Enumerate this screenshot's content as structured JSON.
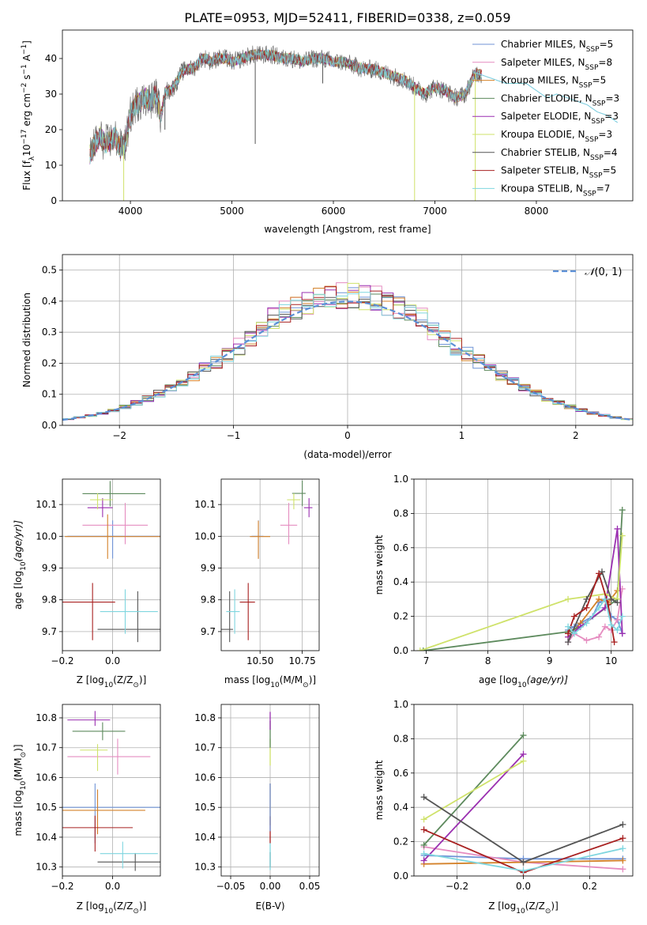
{
  "figure_title": "PLATE=0953, MJD=52411, FIBERID=0338, z=0.059",
  "legend": {
    "series": [
      "Chabrier MILES",
      "Salpeter MILES",
      "Kroupa MILES",
      "Chabrier ELODIE",
      "Salpeter ELODIE",
      "Kroupa ELODIE",
      "Chabrier STELIB",
      "Salpeter STELIB",
      "Kroupa STELIB"
    ],
    "nssp": [
      "5",
      "8",
      "5",
      "3",
      "3",
      "3",
      "4",
      "5",
      "7"
    ],
    "nssp_prefix": "N",
    "nssp_sub": "SSP",
    "nssp_eq": "=",
    "colors": [
      "#6f93d6",
      "#e58cc0",
      "#d4822a",
      "#5d8a5d",
      "#9a2fb0",
      "#cfe26a",
      "#555555",
      "#a82020",
      "#7fd6df"
    ]
  },
  "chart_data": [
    {
      "type": "line",
      "id": "spectrum",
      "xlabel": "wavelength [Angstrom, rest frame]",
      "ylabel_parts": [
        "Flux [f",
        "λ",
        "10",
        "−17",
        " erg cm",
        "−2",
        " s",
        "−1",
        " A",
        "−1",
        "]"
      ],
      "xlim": [
        3330,
        8950
      ],
      "ylim": [
        0,
        48
      ],
      "xticks": [
        4000,
        5000,
        6000,
        7000,
        8000
      ],
      "yticks": [
        0,
        10,
        20,
        30,
        40
      ],
      "continuum_x": [
        3600,
        3650,
        3700,
        3750,
        3800,
        3850,
        3900,
        3950,
        4000,
        4050,
        4100,
        4150,
        4200,
        4250,
        4300,
        4350,
        4400,
        4450,
        4500,
        4550,
        4600,
        4650,
        4700,
        4750,
        4800,
        4850,
        4900,
        4950,
        5000,
        5100,
        5200,
        5300,
        5400,
        5500,
        5600,
        5700,
        5800,
        5900,
        6000,
        6100,
        6200,
        6300,
        6400,
        6500,
        6600,
        6700,
        6800,
        6900,
        7000,
        7100,
        7200,
        7300,
        7400,
        7500,
        7600,
        7700,
        7800,
        7900,
        8000,
        8100,
        8200,
        8300,
        8400,
        8500,
        8600,
        8700,
        8800
      ],
      "continuum_y": [
        13,
        16,
        18,
        16,
        17,
        18,
        15,
        16,
        24,
        27,
        28,
        29,
        28,
        30,
        24,
        31,
        31,
        33,
        36,
        37,
        37,
        38,
        40,
        40,
        39,
        40,
        40,
        40,
        39,
        40,
        41,
        41,
        41,
        40,
        40,
        39,
        40,
        40,
        39,
        39,
        38,
        37,
        37,
        36,
        35,
        34,
        32,
        30,
        32,
        31,
        29,
        30,
        36,
        35,
        34,
        33,
        33,
        33,
        31,
        29,
        30,
        29,
        28,
        27,
        25,
        24,
        22
      ],
      "dips": [
        {
          "x": 3934,
          "y": 0
        },
        {
          "x": 6800,
          "y": 0
        },
        {
          "x": 7398,
          "y": 0
        },
        {
          "x": 5230,
          "y": 16
        },
        {
          "x": 5895,
          "y": 33
        },
        {
          "x": 4340,
          "y": 20
        }
      ]
    },
    {
      "type": "line",
      "id": "residuals",
      "xlabel": "(data-model)/error",
      "ylabel": "Normed distribution",
      "xlim": [
        -2.5,
        2.5
      ],
      "ylim": [
        0,
        0.55
      ],
      "xticks": [
        -2,
        -1,
        0,
        1,
        2
      ],
      "yticks": [
        0.0,
        0.1,
        0.2,
        0.3,
        0.4,
        0.5
      ],
      "ref_label": "N(0, 1)",
      "ref_label_parts": [
        "𝒩",
        "(0, 1)"
      ],
      "bin_width": 0.1,
      "grid": true
    },
    {
      "type": "scatter",
      "id": "age-vs-Z",
      "xlabel_parts": [
        "Z [log",
        "10",
        "(Z/Z",
        "⊙",
        ")]"
      ],
      "ylabel_parts": [
        "age  [log",
        "10",
        "(age/yr)]"
      ],
      "xlim": [
        -0.2,
        0.19
      ],
      "ylim": [
        9.64,
        10.18
      ],
      "xticks": [
        -0.2,
        0.0
      ],
      "yticks": [
        9.7,
        9.8,
        9.9,
        10.0,
        10.1
      ],
      "grid": true,
      "points": [
        {
          "s": 0,
          "x": 0.0,
          "y": 10.0,
          "xl": 0.18,
          "xh": 0.32,
          "yl": 0.07,
          "yh": 0.05
        },
        {
          "s": 1,
          "x": 0.05,
          "y": 10.035,
          "xl": 0.17,
          "xh": 0.09,
          "yl": 0.06,
          "yh": 0.07
        },
        {
          "s": 2,
          "x": -0.02,
          "y": 9.999,
          "xl": 0.17,
          "xh": 0.35,
          "yl": 0.07,
          "yh": 0.07
        },
        {
          "s": 3,
          "x": -0.01,
          "y": 10.134,
          "xl": 0.11,
          "xh": 0.14,
          "yl": 0.04,
          "yh": 0.04
        },
        {
          "s": 4,
          "x": -0.04,
          "y": 10.09,
          "xl": 0.06,
          "xh": 0.04,
          "yl": 0.03,
          "yh": 0.03
        },
        {
          "s": 5,
          "x": -0.06,
          "y": 10.115,
          "xl": 0.03,
          "xh": 0.06,
          "yl": 0.03,
          "yh": 0.02
        },
        {
          "s": 6,
          "x": 0.1,
          "y": 9.707,
          "xl": 0.16,
          "xh": 0.13,
          "yl": 0.04,
          "yh": 0.12
        },
        {
          "s": 7,
          "x": -0.08,
          "y": 9.793,
          "xl": 0.13,
          "xh": 0.09,
          "yl": 0.12,
          "yh": 0.06
        },
        {
          "s": 8,
          "x": 0.05,
          "y": 9.763,
          "xl": 0.1,
          "xh": 0.13,
          "yl": 0.07,
          "yh": 0.07
        }
      ]
    },
    {
      "type": "scatter",
      "id": "age-vs-mass",
      "xlabel_parts": [
        "mass [log",
        "10",
        "(M/M",
        "⊙",
        ")]"
      ],
      "xlim": [
        10.27,
        10.85
      ],
      "ylim": [
        9.64,
        10.18
      ],
      "xticks": [
        10.5,
        10.75
      ],
      "xtick_labels": [
        "10.50",
        "10.75"
      ],
      "yticks": [
        9.7,
        9.8,
        9.9,
        10.0,
        10.1
      ],
      "grid": true,
      "points": [
        {
          "s": 0,
          "x": 10.49,
          "y": 10.0,
          "xl": 0.04,
          "xh": 0.03,
          "yl": 0.07,
          "yh": 0.05
        },
        {
          "s": 1,
          "x": 10.67,
          "y": 10.035,
          "xl": 0.05,
          "xh": 0.05,
          "yl": 0.06,
          "yh": 0.07
        },
        {
          "s": 2,
          "x": 10.49,
          "y": 9.999,
          "xl": 0.05,
          "xh": 0.07,
          "yl": 0.07,
          "yh": 0.05
        },
        {
          "s": 3,
          "x": 10.75,
          "y": 10.135,
          "xl": 0.06,
          "xh": 0.02,
          "yl": 0.04,
          "yh": 0.04
        },
        {
          "s": 4,
          "x": 10.79,
          "y": 10.09,
          "xl": 0.03,
          "xh": 0.02,
          "yl": 0.03,
          "yh": 0.03
        },
        {
          "s": 5,
          "x": 10.7,
          "y": 10.115,
          "xl": 0.04,
          "xh": 0.04,
          "yl": 0.03,
          "yh": 0.02
        },
        {
          "s": 6,
          "x": 10.32,
          "y": 9.707,
          "xl": 0.05,
          "xh": 0.02,
          "yl": 0.04,
          "yh": 0.12
        },
        {
          "s": 7,
          "x": 10.43,
          "y": 9.793,
          "xl": 0.05,
          "xh": 0.04,
          "yl": 0.12,
          "yh": 0.06
        },
        {
          "s": 8,
          "x": 10.35,
          "y": 9.763,
          "xl": 0.05,
          "xh": 0.03,
          "yl": 0.07,
          "yh": 0.07
        }
      ]
    },
    {
      "type": "line",
      "id": "weight-vs-age",
      "xlabel_parts": [
        "age  [log",
        "10",
        "(age/yr)]"
      ],
      "ylabel": "mass weight",
      "xlim": [
        6.8,
        10.35
      ],
      "ylim": [
        0,
        1.0
      ],
      "xticks": [
        7,
        8,
        9,
        10
      ],
      "yticks": [
        0.0,
        0.2,
        0.4,
        0.6,
        0.8,
        1.0
      ],
      "grid": true,
      "series": [
        {
          "s": 0,
          "x": [
            9.3,
            9.4,
            9.5,
            9.7,
            9.8,
            9.9,
            10.0,
            10.1,
            10.18
          ],
          "y": [
            0.12,
            0.14,
            0.16,
            0.2,
            0.28,
            0.3,
            0.2,
            0.18,
            0.1
          ]
        },
        {
          "s": 1,
          "x": [
            9.3,
            9.4,
            9.6,
            9.8,
            9.9,
            10.0,
            10.1,
            10.18
          ],
          "y": [
            0.05,
            0.1,
            0.06,
            0.08,
            0.14,
            0.12,
            0.18,
            0.36
          ]
        },
        {
          "s": 2,
          "x": [
            9.3,
            9.5,
            9.8,
            9.95,
            10.1
          ],
          "y": [
            0.08,
            0.16,
            0.3,
            0.28,
            0.35
          ]
        },
        {
          "s": 3,
          "x": [
            6.95,
            9.3,
            9.5,
            10.1,
            10.18
          ],
          "y": [
            0.0,
            0.11,
            0.14,
            0.3,
            0.82
          ]
        },
        {
          "s": 4,
          "x": [
            9.3,
            9.5,
            9.9,
            10.1,
            10.18
          ],
          "y": [
            0.08,
            0.14,
            0.25,
            0.71,
            0.1
          ]
        },
        {
          "s": 5,
          "x": [
            6.9,
            9.3,
            9.9,
            10.1,
            10.18
          ],
          "y": [
            0.0,
            0.3,
            0.33,
            0.3,
            0.67
          ]
        },
        {
          "s": 6,
          "x": [
            9.3,
            9.6,
            9.85,
            10.0,
            10.1
          ],
          "y": [
            0.05,
            0.3,
            0.46,
            0.3,
            0.28
          ]
        },
        {
          "s": 7,
          "x": [
            9.3,
            9.4,
            9.6,
            9.8,
            9.95,
            10.05
          ],
          "y": [
            0.1,
            0.2,
            0.25,
            0.45,
            0.27,
            0.05
          ]
        },
        {
          "s": 8,
          "x": [
            9.3,
            9.4,
            9.6,
            9.8,
            9.9,
            10.0,
            10.1,
            10.18
          ],
          "y": [
            0.14,
            0.1,
            0.16,
            0.25,
            0.3,
            0.15,
            0.12,
            0.2
          ]
        }
      ]
    },
    {
      "type": "scatter",
      "id": "mass-vs-Z",
      "xlabel_parts": [
        "Z [log",
        "10",
        "(Z/Z",
        "⊙",
        ")]"
      ],
      "ylabel_parts": [
        "mass [log",
        "10",
        "(M/M",
        "⊙",
        ")]"
      ],
      "xlim": [
        -0.2,
        0.19
      ],
      "ylim": [
        10.27,
        10.845
      ],
      "xticks": [
        -0.2,
        0.0
      ],
      "yticks": [
        10.3,
        10.4,
        10.5,
        10.6,
        10.7,
        10.8
      ],
      "grid": true,
      "points": [
        {
          "s": 0,
          "x": -0.07,
          "y": 10.5,
          "xl": 0.13,
          "xh": 0.26,
          "yl": 0.12,
          "yh": 0.08
        },
        {
          "s": 1,
          "x": 0.02,
          "y": 10.67,
          "xl": 0.2,
          "xh": 0.13,
          "yl": 0.06,
          "yh": 0.06
        },
        {
          "s": 2,
          "x": -0.06,
          "y": 10.49,
          "xl": 0.14,
          "xh": 0.19,
          "yl": 0.08,
          "yh": 0.07
        },
        {
          "s": 3,
          "x": -0.04,
          "y": 10.755,
          "xl": 0.12,
          "xh": 0.09,
          "yl": 0.03,
          "yh": 0.03
        },
        {
          "s": 4,
          "x": -0.07,
          "y": 10.793,
          "xl": 0.11,
          "xh": 0.06,
          "yl": 0.02,
          "yh": 0.03
        },
        {
          "s": 5,
          "x": -0.06,
          "y": 10.692,
          "xl": 0.07,
          "xh": 0.04,
          "yl": 0.07,
          "yh": 0.02
        },
        {
          "s": 6,
          "x": 0.09,
          "y": 10.317,
          "xl": 0.15,
          "xh": 0.14,
          "yl": 0.03,
          "yh": 0.03
        },
        {
          "s": 7,
          "x": -0.07,
          "y": 10.432,
          "xl": 0.13,
          "xh": 0.15,
          "yl": 0.08,
          "yh": 0.04
        },
        {
          "s": 8,
          "x": 0.04,
          "y": 10.345,
          "xl": 0.09,
          "xh": 0.14,
          "yl": 0.05,
          "yh": 0.04
        }
      ]
    },
    {
      "type": "scatter",
      "id": "mass-vs-EBV",
      "xlabel": "E(B-V)",
      "xlim": [
        -0.062,
        0.062
      ],
      "ylim": [
        10.27,
        10.845
      ],
      "xticks": [
        -0.05,
        0.0,
        0.05
      ],
      "xtick_labels": [
        "−0.05",
        "0.00",
        "0.05"
      ],
      "yticks": [
        10.3,
        10.4,
        10.5,
        10.6,
        10.7,
        10.8
      ],
      "grid": true,
      "vlines": [
        {
          "s": 6,
          "y0": 10.3,
          "y1": 10.35
        },
        {
          "s": 8,
          "y0": 10.29,
          "y1": 10.38
        },
        {
          "s": 7,
          "y0": 10.38,
          "y1": 10.47
        },
        {
          "s": 2,
          "y0": 10.44,
          "y1": 10.58
        },
        {
          "s": 0,
          "y0": 10.42,
          "y1": 10.58
        },
        {
          "s": 5,
          "y0": 10.64,
          "y1": 10.73
        },
        {
          "s": 3,
          "y0": 10.7,
          "y1": 10.79
        },
        {
          "s": 4,
          "y0": 10.76,
          "y1": 10.82
        }
      ]
    },
    {
      "type": "line",
      "id": "weight-vs-Z",
      "xlabel_parts": [
        "Z [log",
        "10",
        "(Z/Z",
        "⊙",
        ")]"
      ],
      "ylabel": "mass weight",
      "xlim": [
        -0.33,
        0.33
      ],
      "ylim": [
        0,
        1.0
      ],
      "xticks": [
        -0.2,
        0.0,
        0.2
      ],
      "xtick_labels": [
        "−0.2",
        "0.0",
        "0.2"
      ],
      "yticks": [
        0.0,
        0.2,
        0.4,
        0.6,
        0.8,
        1.0
      ],
      "grid": true,
      "series": [
        {
          "s": 0,
          "x": [
            -0.3,
            0.0,
            0.3
          ],
          "y": [
            0.12,
            0.1,
            0.1
          ]
        },
        {
          "s": 1,
          "x": [
            -0.3,
            0.0,
            0.3
          ],
          "y": [
            0.17,
            0.08,
            0.04
          ]
        },
        {
          "s": 2,
          "x": [
            -0.3,
            0.0,
            0.3
          ],
          "y": [
            0.07,
            0.08,
            0.09
          ]
        },
        {
          "s": 3,
          "x": [
            -0.3,
            0.0
          ],
          "y": [
            0.18,
            0.82
          ]
        },
        {
          "s": 4,
          "x": [
            -0.3,
            0.0
          ],
          "y": [
            0.09,
            0.71
          ]
        },
        {
          "s": 5,
          "x": [
            -0.3,
            0.0
          ],
          "y": [
            0.33,
            0.67
          ]
        },
        {
          "s": 6,
          "x": [
            -0.3,
            0.0,
            0.3
          ],
          "y": [
            0.46,
            0.08,
            0.3
          ]
        },
        {
          "s": 7,
          "x": [
            -0.3,
            0.0,
            0.3
          ],
          "y": [
            0.27,
            0.02,
            0.22
          ]
        },
        {
          "s": 8,
          "x": [
            -0.3,
            0.0,
            0.3
          ],
          "y": [
            0.13,
            0.03,
            0.16
          ]
        }
      ]
    }
  ]
}
